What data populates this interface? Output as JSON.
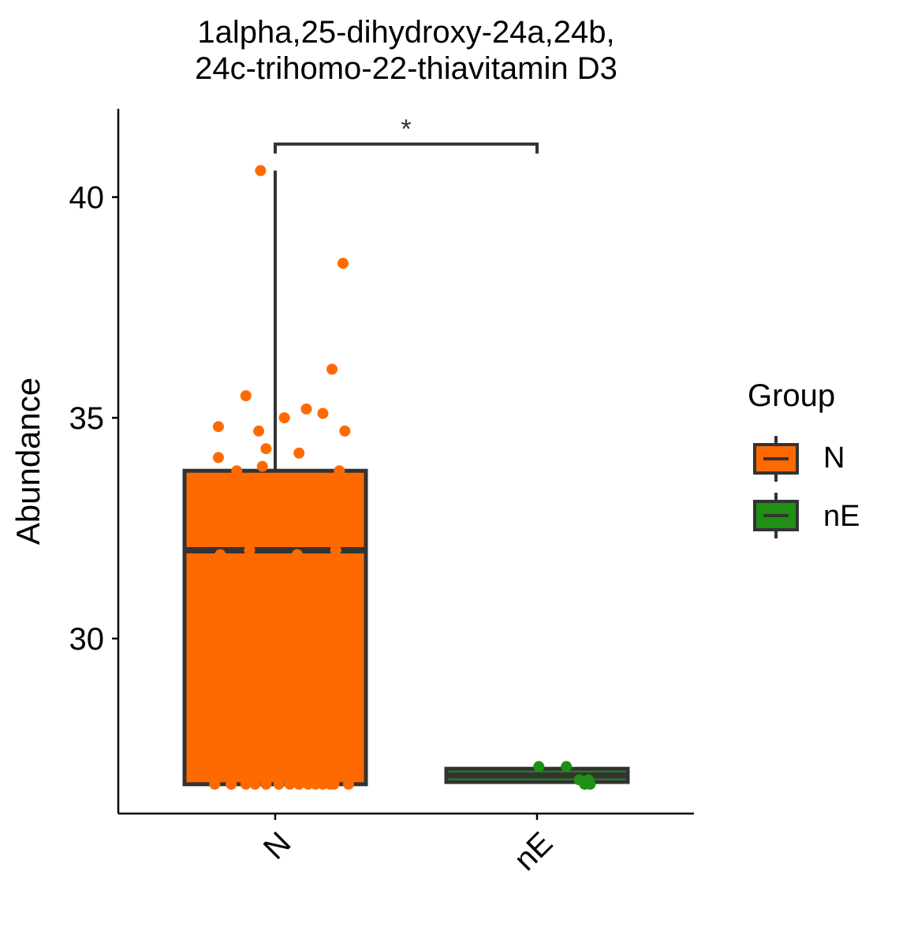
{
  "chart_data": {
    "type": "box",
    "title_lines": [
      "1alpha,25-dihydroxy-24a,24b,",
      "24c-trihomo-22-thiavitamin D3"
    ],
    "xlabel": "",
    "ylabel": "Abundance",
    "ylim": [
      26.2,
      42.2
    ],
    "yticks": [
      30,
      35,
      40
    ],
    "categories": [
      "N",
      "nE"
    ],
    "legend": {
      "title": "Group",
      "position": "right"
    },
    "significance": {
      "between": [
        "N",
        "nE"
      ],
      "label": "*",
      "y": 41.2
    },
    "series": [
      {
        "name": "N",
        "color": "#FF6A00",
        "box": {
          "q1": 26.7,
          "median": 32.0,
          "q3": 33.8,
          "whisker_low": 26.7,
          "whisker_high": 40.6
        },
        "points": [
          {
            "x": -0.4,
            "y": 33.5
          },
          {
            "x": -0.31,
            "y": 34.8
          },
          {
            "x": -0.31,
            "y": 34.1
          },
          {
            "x": -0.21,
            "y": 33.8
          },
          {
            "x": -0.16,
            "y": 35.5
          },
          {
            "x": -0.14,
            "y": 32.0
          },
          {
            "x": -0.09,
            "y": 34.7
          },
          {
            "x": -0.08,
            "y": 40.6
          },
          {
            "x": -0.07,
            "y": 33.9
          },
          {
            "x": -0.05,
            "y": 34.3
          },
          {
            "x": 0.05,
            "y": 35.0
          },
          {
            "x": 0.12,
            "y": 31.9
          },
          {
            "x": 0.13,
            "y": 34.2
          },
          {
            "x": 0.17,
            "y": 35.2
          },
          {
            "x": 0.26,
            "y": 35.1
          },
          {
            "x": 0.31,
            "y": 36.1
          },
          {
            "x": 0.33,
            "y": 32.0
          },
          {
            "x": 0.35,
            "y": 33.8
          },
          {
            "x": 0.37,
            "y": 38.5
          },
          {
            "x": 0.37,
            "y": 33.1
          },
          {
            "x": 0.38,
            "y": 34.7
          },
          {
            "x": 0.33,
            "y": 33.0
          },
          {
            "x": -0.3,
            "y": 31.9
          },
          {
            "x": -0.33,
            "y": 26.7
          },
          {
            "x": -0.24,
            "y": 26.7
          },
          {
            "x": -0.16,
            "y": 26.7
          },
          {
            "x": -0.11,
            "y": 26.7
          },
          {
            "x": -0.05,
            "y": 26.7
          },
          {
            "x": 0.02,
            "y": 26.7
          },
          {
            "x": 0.08,
            "y": 26.7
          },
          {
            "x": 0.13,
            "y": 26.7
          },
          {
            "x": 0.18,
            "y": 26.7
          },
          {
            "x": 0.22,
            "y": 26.7
          },
          {
            "x": 0.26,
            "y": 26.7
          },
          {
            "x": 0.3,
            "y": 26.7
          },
          {
            "x": 0.32,
            "y": 26.7
          },
          {
            "x": 0.4,
            "y": 26.7
          }
        ]
      },
      {
        "name": "nE",
        "color": "#1E9014",
        "box": {
          "q1": 26.75,
          "median": 26.9,
          "q3": 27.05,
          "whisker_low": 26.75,
          "whisker_high": 27.05
        },
        "points": [
          {
            "x": 0.01,
            "y": 27.1
          },
          {
            "x": 0.16,
            "y": 27.1
          },
          {
            "x": 0.23,
            "y": 26.8
          },
          {
            "x": 0.26,
            "y": 26.7
          },
          {
            "x": 0.28,
            "y": 26.8
          },
          {
            "x": 0.29,
            "y": 26.7
          }
        ]
      }
    ]
  }
}
